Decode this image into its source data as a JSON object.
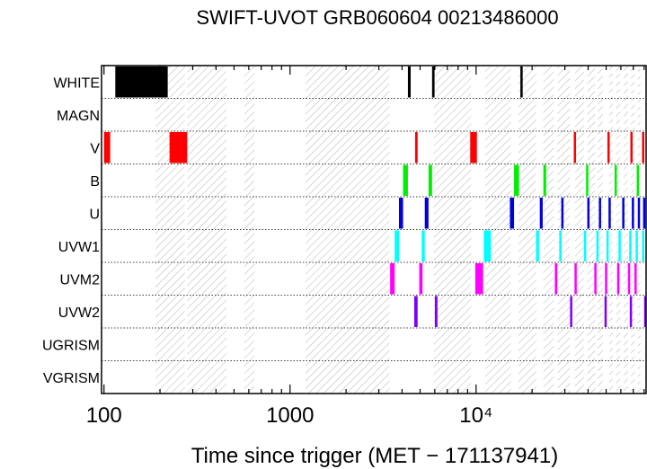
{
  "chart_data": {
    "type": "timeline",
    "title": "SWIFT-UVOT GRB060604 00213486000",
    "xlabel": "Time since trigger (MET − 171137941)",
    "xscale": "log",
    "xlim": [
      97,
      82000
    ],
    "x_ticks": [
      {
        "value": 100,
        "label": "100"
      },
      {
        "value": 1000,
        "label": "1000"
      },
      {
        "value": 10000,
        "label": "10⁴"
      }
    ],
    "filters": [
      {
        "name": "WHITE",
        "color": "#000000",
        "intervals": [
          [
            115,
            220
          ],
          [
            4300,
            4450
          ],
          [
            5800,
            5980
          ],
          [
            17300,
            17800
          ]
        ]
      },
      {
        "name": "MAGN",
        "color": "#000000",
        "intervals": []
      },
      {
        "name": "V",
        "color": "#ff0000",
        "intervals": [
          [
            100,
            108
          ],
          [
            225,
            280
          ],
          [
            4700,
            4850
          ],
          [
            9300,
            10100
          ],
          [
            33500,
            34300
          ],
          [
            50800,
            51800
          ],
          [
            67500,
            68500
          ],
          [
            78000,
            79200
          ]
        ]
      },
      {
        "name": "B",
        "color": "#00ee00",
        "intervals": [
          [
            4050,
            4300
          ],
          [
            5550,
            5800
          ],
          [
            16000,
            17000
          ],
          [
            23000,
            23800
          ],
          [
            39000,
            39800
          ],
          [
            55500,
            56500
          ],
          [
            73000,
            74000
          ]
        ]
      },
      {
        "name": "U",
        "color": "#0000dd",
        "intervals": [
          [
            3850,
            4050
          ],
          [
            5300,
            5550
          ],
          [
            15200,
            16000
          ],
          [
            22000,
            22800
          ],
          [
            28700,
            29500
          ],
          [
            39600,
            40400
          ],
          [
            45700,
            46700
          ],
          [
            51500,
            52500
          ],
          [
            61000,
            62000
          ],
          [
            68700,
            69700
          ],
          [
            74000,
            75000
          ],
          [
            79000,
            80000
          ]
        ]
      },
      {
        "name": "UVW1",
        "color": "#00ffff",
        "intervals": [
          [
            3650,
            3850
          ],
          [
            5100,
            5300
          ],
          [
            11000,
            12000
          ],
          [
            21000,
            21800
          ],
          [
            28000,
            28800
          ],
          [
            38000,
            38800
          ],
          [
            44300,
            45300
          ],
          [
            50200,
            51200
          ],
          [
            58300,
            59300
          ],
          [
            66500,
            67500
          ],
          [
            72000,
            73000
          ],
          [
            78000,
            79000
          ]
        ]
      },
      {
        "name": "UVM2",
        "color": "#ff00ff",
        "intervals": [
          [
            3450,
            3650
          ],
          [
            4950,
            5150
          ],
          [
            9900,
            10900
          ],
          [
            26500,
            27300
          ],
          [
            33800,
            34600
          ],
          [
            43200,
            44200
          ],
          [
            49300,
            50300
          ],
          [
            57300,
            58300
          ],
          [
            65500,
            66500
          ],
          [
            71000,
            72000
          ]
        ]
      },
      {
        "name": "UVW2",
        "color": "#7f00ff",
        "intervals": [
          [
            4650,
            4850
          ],
          [
            6000,
            6200
          ],
          [
            32000,
            32800
          ],
          [
            49000,
            50000
          ],
          [
            67000,
            68000
          ],
          [
            80000,
            81000
          ]
        ]
      },
      {
        "name": "UGRISM",
        "color": "#000000",
        "intervals": []
      },
      {
        "name": "VGRISM",
        "color": "#000000",
        "intervals": []
      }
    ],
    "hatched_intervals": [
      [
        189,
        272
      ],
      [
        280,
        455
      ],
      [
        568,
        645
      ],
      [
        1210,
        3420
      ],
      [
        5920,
        9400
      ],
      [
        11200,
        15400
      ],
      [
        16900,
        21000
      ],
      [
        23000,
        26200
      ],
      [
        27400,
        32000
      ],
      [
        34000,
        38000
      ],
      [
        39600,
        43700
      ],
      [
        45000,
        48000
      ],
      [
        52000,
        54300
      ],
      [
        56500,
        59600
      ],
      [
        62000,
        65600
      ],
      [
        68000,
        71300
      ],
      [
        74000,
        76500
      ]
    ],
    "grid": "dotted-row-separators",
    "legend": "none"
  }
}
